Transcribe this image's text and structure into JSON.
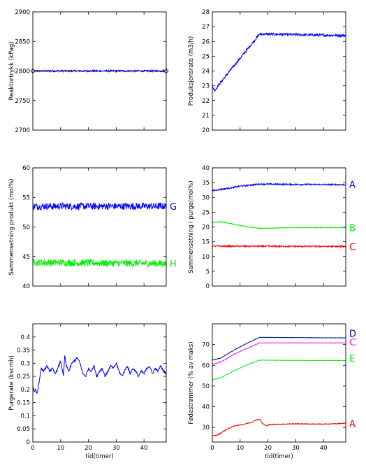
{
  "chart_data": [
    {
      "type": "line",
      "ylabel": "Reaktortrykk (kPag)",
      "xlabel": "",
      "xlim": [
        0,
        48
      ],
      "ylim": [
        2700,
        2900
      ],
      "yticks": [
        2700,
        2750,
        2800,
        2850,
        2900
      ],
      "xticks": [
        0,
        10,
        20,
        30,
        40
      ],
      "show_xtick_labels": false,
      "series": [
        {
          "color": "#0000ff",
          "noise": 1.5,
          "points": [
            [
              0,
              2800
            ],
            [
              48,
              2800
            ]
          ]
        },
        {
          "color": "#000000",
          "marker": "diamond",
          "points": [
            [
              0,
              2800
            ],
            [
              48,
              2800
            ]
          ]
        }
      ],
      "end_labels": []
    },
    {
      "type": "line",
      "ylabel": "Produksjonsrate (m3/h)",
      "xlabel": "",
      "xlim": [
        0,
        48
      ],
      "ylim": [
        20,
        28
      ],
      "yticks": [
        20,
        21,
        22,
        23,
        24,
        25,
        26,
        27,
        28
      ],
      "xticks": [
        0,
        10,
        20,
        30,
        40
      ],
      "show_xtick_labels": false,
      "series": [
        {
          "color": "#0000ff",
          "noise": 0.09,
          "points": [
            [
              0,
              22.9
            ],
            [
              1,
              22.7
            ],
            [
              2,
              23.0
            ],
            [
              17,
              26.5
            ],
            [
              48,
              26.4
            ]
          ]
        }
      ],
      "end_labels": []
    },
    {
      "type": "line",
      "ylabel": "Sammensetning produkt (mol%)",
      "xlabel": "",
      "xlim": [
        0,
        48
      ],
      "ylim": [
        40,
        60
      ],
      "yticks": [
        40,
        45,
        50,
        55,
        60
      ],
      "xticks": [
        0,
        10,
        20,
        30,
        40
      ],
      "show_xtick_labels": false,
      "series": [
        {
          "color": "#0000ff",
          "noise": 0.6,
          "points": [
            [
              0,
              53.5
            ],
            [
              48,
              53.5
            ]
          ]
        },
        {
          "color": "#00ee00",
          "noise": 0.6,
          "points": [
            [
              0,
              44.0
            ],
            [
              48,
              43.8
            ]
          ]
        }
      ],
      "end_labels": [
        {
          "text": "G",
          "y": 53.5,
          "color": "#0000ff"
        },
        {
          "text": "H",
          "y": 43.8,
          "color": "#00ee00"
        }
      ]
    },
    {
      "type": "line",
      "ylabel": "Sammensetning i purge(mol%)",
      "xlabel": "",
      "xlim": [
        0,
        48
      ],
      "ylim": [
        0,
        40
      ],
      "yticks": [
        0,
        5,
        10,
        15,
        20,
        25,
        30,
        35,
        40
      ],
      "xticks": [
        0,
        10,
        20,
        30,
        40
      ],
      "show_xtick_labels": false,
      "series": [
        {
          "color": "#0000ff",
          "noise": 0.25,
          "points": [
            [
              0,
              32.3
            ],
            [
              5,
              33.0
            ],
            [
              10,
              33.8
            ],
            [
              17,
              34.5
            ],
            [
              30,
              34.4
            ],
            [
              48,
              34.3
            ]
          ]
        },
        {
          "color": "#00ee00",
          "noise": 0.12,
          "points": [
            [
              0,
              21.5
            ],
            [
              3,
              21.8
            ],
            [
              10,
              20.5
            ],
            [
              17,
              19.5
            ],
            [
              30,
              19.8
            ],
            [
              48,
              19.8
            ]
          ]
        },
        {
          "color": "#ff0000",
          "noise": 0.25,
          "points": [
            [
              0,
              13.5
            ],
            [
              48,
              13.4
            ]
          ]
        }
      ],
      "end_labels": [
        {
          "text": "A",
          "y": 34.4,
          "color": "#0000ff"
        },
        {
          "text": "B",
          "y": 19.8,
          "color": "#00ee00"
        },
        {
          "text": "C",
          "y": 13.4,
          "color": "#ff0000"
        }
      ]
    },
    {
      "type": "line",
      "ylabel": "Purgerate (kscmh)",
      "xlabel": "tid(timer)",
      "xlim": [
        0,
        48
      ],
      "ylim": [
        0,
        0.45
      ],
      "yticks": [
        0,
        0.05,
        0.1,
        0.15,
        0.2,
        0.25,
        0.3,
        0.35,
        0.4
      ],
      "xticks": [
        0,
        10,
        20,
        30,
        40
      ],
      "show_xtick_labels": true,
      "series": [
        {
          "color": "#0000ff",
          "noise": 0.004,
          "points": [
            [
              0,
              0.215
            ],
            [
              0.5,
              0.19
            ],
            [
              1,
              0.2
            ],
            [
              1.5,
              0.185
            ],
            [
              2,
              0.21
            ],
            [
              3,
              0.28
            ],
            [
              4,
              0.27
            ],
            [
              5,
              0.29
            ],
            [
              6,
              0.27
            ],
            [
              7,
              0.28
            ],
            [
              8,
              0.26
            ],
            [
              9,
              0.28
            ],
            [
              10,
              0.31
            ],
            [
              11,
              0.25
            ],
            [
              11.5,
              0.33
            ],
            [
              12,
              0.29
            ],
            [
              13,
              0.27
            ],
            [
              14,
              0.3
            ],
            [
              15,
              0.31
            ],
            [
              16,
              0.32
            ],
            [
              17,
              0.3
            ],
            [
              18,
              0.26
            ],
            [
              19,
              0.25
            ],
            [
              20,
              0.28
            ],
            [
              21,
              0.27
            ],
            [
              22,
              0.29
            ],
            [
              23,
              0.25
            ],
            [
              24,
              0.27
            ],
            [
              25,
              0.28
            ],
            [
              26,
              0.25
            ],
            [
              27,
              0.27
            ],
            [
              28,
              0.29
            ],
            [
              29,
              0.28
            ],
            [
              30,
              0.3
            ],
            [
              31,
              0.27
            ],
            [
              32,
              0.25
            ],
            [
              33,
              0.27
            ],
            [
              34,
              0.29
            ],
            [
              35,
              0.26
            ],
            [
              36,
              0.28
            ],
            [
              37,
              0.27
            ],
            [
              38,
              0.25
            ],
            [
              39,
              0.27
            ],
            [
              40,
              0.26
            ],
            [
              41,
              0.28
            ],
            [
              42,
              0.29
            ],
            [
              43,
              0.26
            ],
            [
              44,
              0.28
            ],
            [
              45,
              0.27
            ],
            [
              46,
              0.29
            ],
            [
              47,
              0.27
            ],
            [
              48,
              0.26
            ]
          ]
        }
      ],
      "end_labels": []
    },
    {
      "type": "line",
      "ylabel": "Fødestrømmer (% av maks)",
      "xlabel": "tid(timer)",
      "xlim": [
        0,
        48
      ],
      "ylim": [
        23,
        80
      ],
      "yticks": [
        30,
        40,
        50,
        60,
        70
      ],
      "xticks": [
        0,
        10,
        20,
        30,
        40
      ],
      "show_xtick_labels": true,
      "series": [
        {
          "color": "#000080",
          "noise": 0.08,
          "points": [
            [
              0,
              62.5
            ],
            [
              3,
              63.5
            ],
            [
              8,
              67.5
            ],
            [
              13,
              71.0
            ],
            [
              17,
              73.5
            ],
            [
              25,
              73.4
            ],
            [
              48,
              73.2
            ]
          ]
        },
        {
          "color": "#ff00ff",
          "noise": 0.08,
          "points": [
            [
              0,
              60.5
            ],
            [
              3,
              61.5
            ],
            [
              8,
              65.5
            ],
            [
              13,
              68.5
            ],
            [
              17,
              70.8
            ],
            [
              25,
              70.8
            ],
            [
              48,
              70.8
            ]
          ]
        },
        {
          "color": "#00ee00",
          "noise": 0.08,
          "points": [
            [
              0,
              53.0
            ],
            [
              3,
              54.0
            ],
            [
              8,
              57.5
            ],
            [
              13,
              60.5
            ],
            [
              17,
              62.5
            ],
            [
              25,
              62.4
            ],
            [
              48,
              62.3
            ]
          ]
        },
        {
          "color": "#ff0000",
          "noise": 0.2,
          "points": [
            [
              0,
              25.8
            ],
            [
              2,
              26.5
            ],
            [
              5,
              29.0
            ],
            [
              8,
              30.8
            ],
            [
              12,
              31.8
            ],
            [
              14,
              32.5
            ],
            [
              16,
              33.8
            ],
            [
              17,
              34.0
            ],
            [
              18,
              32.0
            ],
            [
              19,
              31.0
            ],
            [
              22,
              31.5
            ],
            [
              30,
              31.8
            ],
            [
              40,
              31.6
            ],
            [
              48,
              32.0
            ]
          ]
        }
      ],
      "end_labels": [
        {
          "text": "D",
          "y": 75.5,
          "color": "#000080"
        },
        {
          "text": "C",
          "y": 71.3,
          "color": "#ff00ff"
        },
        {
          "text": "E",
          "y": 63.5,
          "color": "#00ee00"
        },
        {
          "text": "A",
          "y": 32.0,
          "color": "#ff0000"
        }
      ]
    }
  ]
}
